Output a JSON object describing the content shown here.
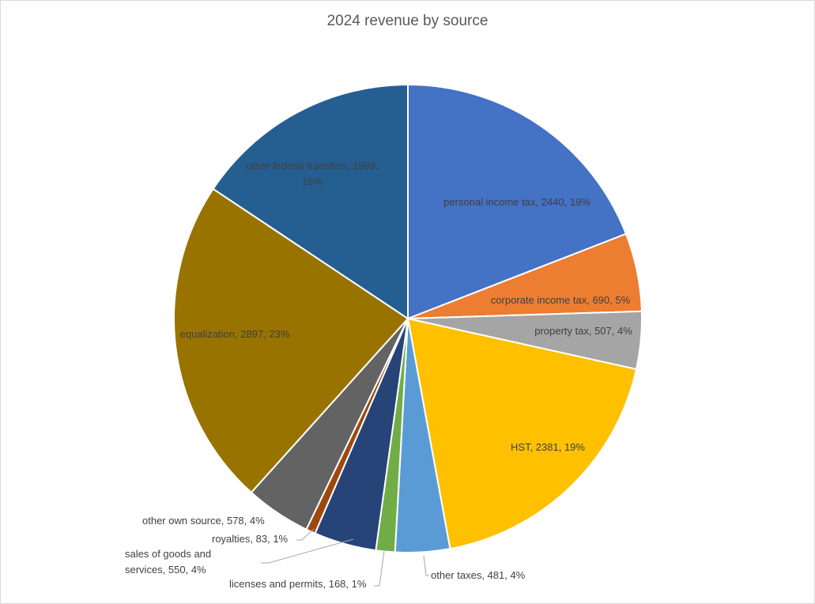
{
  "chart_data": {
    "type": "pie",
    "title": "2024 revenue by source",
    "slices": [
      {
        "name": "personal income tax",
        "value": 2440,
        "percent": "19%",
        "color": "#4472C4",
        "label_lines": [
          "personal income tax, 2440, 19%"
        ]
      },
      {
        "name": "corporate income tax",
        "value": 690,
        "percent": "5%",
        "color": "#ED7D31",
        "label_lines": [
          "corporate income tax, 690, 5%"
        ]
      },
      {
        "name": "property tax",
        "value": 507,
        "percent": "4%",
        "color": "#A5A5A5",
        "label_lines": [
          "property tax, 507, 4%"
        ]
      },
      {
        "name": "HST",
        "value": 2381,
        "percent": "19%",
        "color": "#FFC000",
        "label_lines": [
          "HST, 2381, 19%"
        ]
      },
      {
        "name": "other taxes",
        "value": 481,
        "percent": "4%",
        "color": "#5B9BD5",
        "label_lines": [
          "other taxes, 481, 4%"
        ]
      },
      {
        "name": "licenses and permits",
        "value": 168,
        "percent": "1%",
        "color": "#70AD47",
        "label_lines": [
          "licenses and permits, 168, 1%"
        ]
      },
      {
        "name": "sales of goods and services",
        "value": 550,
        "percent": "4%",
        "color": "#264478",
        "label_lines": [
          "sales of goods and",
          "services, 550, 4%"
        ]
      },
      {
        "name": "royalties",
        "value": 83,
        "percent": "1%",
        "color": "#9E480E",
        "label_lines": [
          "royalties, 83, 1%"
        ]
      },
      {
        "name": "other own source",
        "value": 578,
        "percent": "4%",
        "color": "#636363",
        "label_lines": [
          "other own source, 578, 4%"
        ]
      },
      {
        "name": "equalization",
        "value": 2897,
        "percent": "23%",
        "color": "#997300",
        "label_lines": [
          "equalization, 2897, 23%"
        ]
      },
      {
        "name": "other federal transfers",
        "value": 1999,
        "percent": "16%",
        "color": "#255E91",
        "label_lines": [
          "other federal transfers, 1999,",
          "16%"
        ]
      }
    ]
  }
}
